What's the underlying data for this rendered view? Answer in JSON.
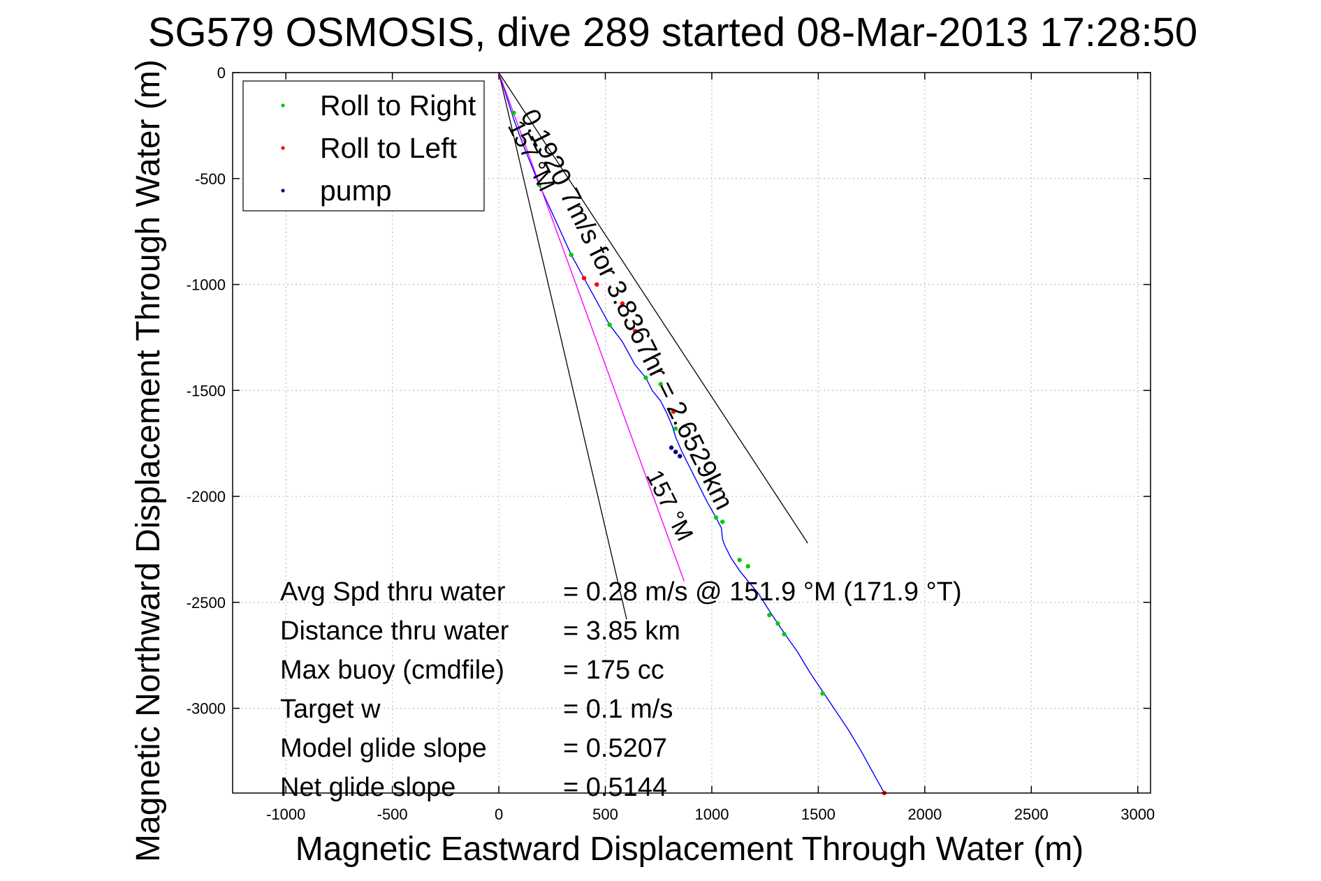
{
  "chart_data": {
    "type": "line",
    "title": "SG579 OSMOSIS, dive 289 started 08-Mar-2013 17:28:50",
    "xlabel": "Magnetic Eastward Displacement Through Water (m)",
    "ylabel": "Magnetic Northward Displacement Through Water (m)",
    "xlim": [
      -1250,
      3060
    ],
    "ylim": [
      -3400,
      0
    ],
    "xticks": [
      -1000,
      -500,
      0,
      500,
      1000,
      1500,
      2000,
      2500,
      3000
    ],
    "yticks": [
      0,
      -500,
      -1000,
      -1500,
      -2000,
      -2500,
      -3000
    ],
    "grid": true,
    "legend": {
      "position": "top-left",
      "entries": [
        {
          "label": "Roll to Right",
          "color": "#00cc00"
        },
        {
          "label": "Roll to Left",
          "color": "#ff0000"
        },
        {
          "label": "pump",
          "color": "#000080"
        }
      ]
    },
    "series": [
      {
        "name": "track",
        "color": "#0000ff",
        "x": [
          0,
          35,
          70,
          110,
          150,
          190,
          240,
          290,
          340,
          400,
          460,
          520,
          580,
          640,
          690,
          720,
          760,
          790,
          815,
          830,
          860,
          900,
          940,
          980,
          1020,
          1045,
          1050,
          1060,
          1090,
          1130,
          1170,
          1220,
          1270,
          1310,
          1350,
          1400,
          1460,
          1520,
          1580,
          1640,
          1700,
          1760,
          1810
        ],
        "y": [
          0,
          -110,
          -220,
          -330,
          -430,
          -530,
          -640,
          -750,
          -860,
          -970,
          -1080,
          -1190,
          -1270,
          -1380,
          -1440,
          -1500,
          -1550,
          -1610,
          -1670,
          -1720,
          -1790,
          -1870,
          -1950,
          -2030,
          -2100,
          -2150,
          -2200,
          -2230,
          -2290,
          -2350,
          -2400,
          -2460,
          -2540,
          -2600,
          -2660,
          -2730,
          -2830,
          -2920,
          -3010,
          -3100,
          -3200,
          -3310,
          -3400
        ]
      },
      {
        "name": "course",
        "color": "#ff00ff",
        "x": [
          0,
          870
        ],
        "y": [
          0,
          -2400
        ]
      }
    ],
    "roll_right_points": {
      "x": [
        70,
        190,
        340,
        520,
        690,
        760,
        830,
        1020,
        1050,
        1130,
        1170,
        1270,
        1310,
        1340,
        1520
      ],
      "y": [
        -190,
        -530,
        -860,
        -1190,
        -1440,
        -1470,
        -1680,
        -2100,
        -2120,
        -2300,
        -2330,
        -2560,
        -2600,
        -2650,
        -2930
      ]
    },
    "roll_left_points": {
      "x": [
        400,
        460,
        580,
        640,
        820,
        1810
      ],
      "y": [
        -970,
        -1000,
        -1090,
        -1220,
        -1600,
        -3400
      ]
    },
    "pump_points": {
      "x": [
        810,
        830,
        850
      ],
      "y": [
        -1770,
        -1790,
        -1810
      ]
    },
    "reference_lines": [
      {
        "x": [
          0,
          1450
        ],
        "y": [
          0,
          -2220
        ]
      },
      {
        "x": [
          0,
          600
        ],
        "y": [
          0,
          -2580
        ]
      }
    ],
    "annotations": [
      {
        "text": "0.1920 7m/s for 3.8367hr = 2.6529km",
        "x": 100,
        "y": -200,
        "rotation": 63.5
      },
      {
        "text": "157 °M",
        "x": 40,
        "y": -250,
        "rotation": 63.5
      },
      {
        "text": "157 °M",
        "x": 690,
        "y": -1900,
        "rotation": 63.5
      }
    ],
    "stats": [
      {
        "label": "Avg Spd thru water",
        "value": "=  0.28 m/s @ 151.9 °M (171.9 °T)"
      },
      {
        "label": "Distance thru water",
        "value": "=  3.85 km"
      },
      {
        "label": "Max buoy (cmdfile)",
        "value": "= 175 cc"
      },
      {
        "label": "Target w",
        "value": "= 0.1 m/s"
      },
      {
        "label": "Model glide slope",
        "value": "= 0.5207"
      },
      {
        "label": "Net glide slope",
        "value": "= 0.5144"
      }
    ]
  }
}
